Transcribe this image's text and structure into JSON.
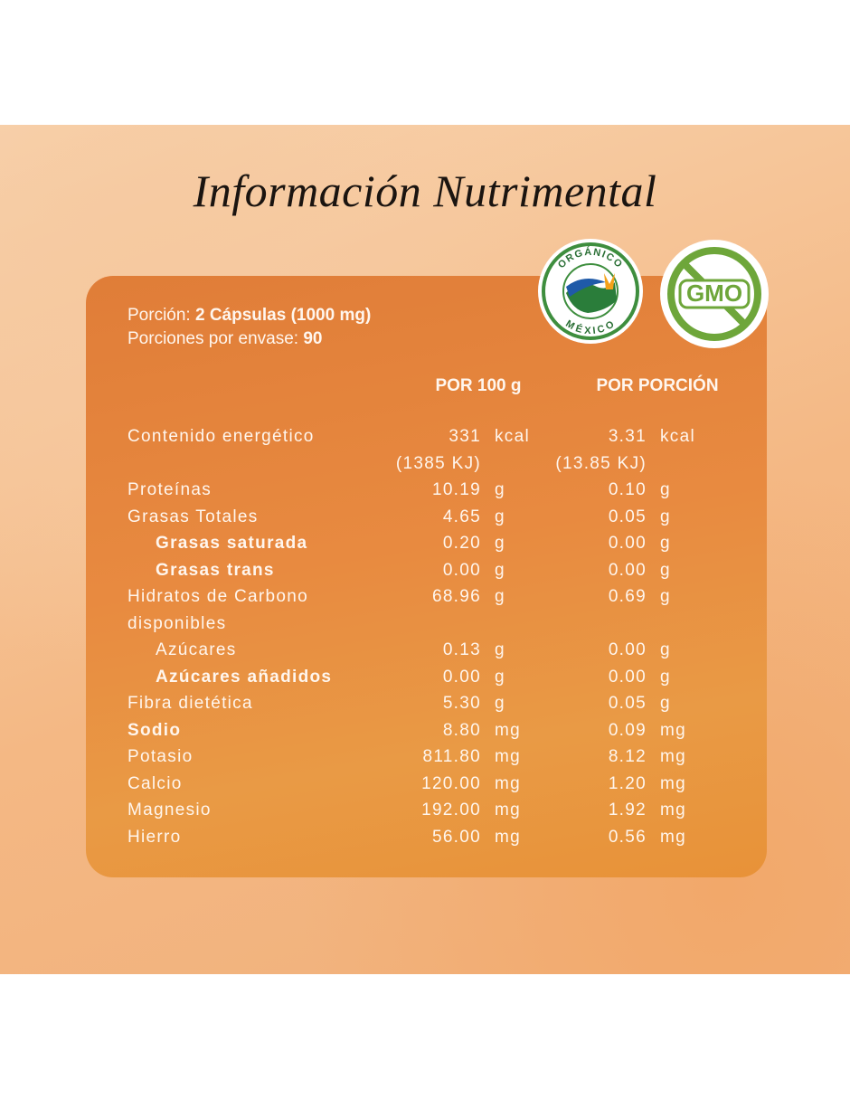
{
  "header": {
    "title": "Información Nutrimental"
  },
  "serving": {
    "label": "Porción:",
    "value": "2 Cápsulas (1000 mg)"
  },
  "servings_per_container": {
    "label": "Porciones por envase:",
    "value": "90"
  },
  "badges": {
    "organic": {
      "top": "ORGÁNICO",
      "bottom": "MÉXICO"
    },
    "gmo": "GMO"
  },
  "table": {
    "columns": [
      "POR 100 g",
      "POR PORCIÓN"
    ],
    "rows": [
      {
        "name": "Contenido energético",
        "per_100": "331",
        "unit_100": "kcal",
        "per_serving": "3.31",
        "unit_serving": "kcal",
        "kj_100": "(1385 KJ)",
        "kj_serving": "(13.85 KJ)"
      },
      {
        "name": "Proteínas",
        "per_100": "10.19",
        "unit_100": "g",
        "per_serving": "0.10",
        "unit_serving": "g"
      },
      {
        "name": "Grasas Totales",
        "per_100": "4.65",
        "unit_100": "g",
        "per_serving": "0.05",
        "unit_serving": "g"
      },
      {
        "name": "Grasas saturada",
        "per_100": "0.20",
        "unit_100": "g",
        "per_serving": "0.00",
        "unit_serving": "g",
        "bold": true,
        "indent": true
      },
      {
        "name": "Grasas trans",
        "per_100": "0.00",
        "unit_100": "g",
        "per_serving": "0.00",
        "unit_serving": "g",
        "bold": true,
        "indent": true
      },
      {
        "name": "Hidratos de Carbono disponibles",
        "per_100": "68.96",
        "unit_100": "g",
        "per_serving": "0.69",
        "unit_serving": "g"
      },
      {
        "name": "Azúcares",
        "per_100": "0.13",
        "unit_100": "g",
        "per_serving": "0.00",
        "unit_serving": "g",
        "indent": true
      },
      {
        "name": "Azúcares añadidos",
        "per_100": "0.00",
        "unit_100": "g",
        "per_serving": "0.00",
        "unit_serving": "g",
        "bold": true,
        "indent": true
      },
      {
        "name": "Fibra dietética",
        "per_100": "5.30",
        "unit_100": "g",
        "per_serving": "0.05",
        "unit_serving": "g"
      },
      {
        "name": "Sodio",
        "per_100": "8.80",
        "unit_100": "mg",
        "per_serving": "0.09",
        "unit_serving": "mg",
        "bold": true
      },
      {
        "name": "Potasio",
        "per_100": "811.80",
        "unit_100": "mg",
        "per_serving": "8.12",
        "unit_serving": "mg"
      },
      {
        "name": "Calcio",
        "per_100": "120.00",
        "unit_100": "mg",
        "per_serving": "1.20",
        "unit_serving": "mg"
      },
      {
        "name": "Magnesio",
        "per_100": "192.00",
        "unit_100": "mg",
        "per_serving": "1.92",
        "unit_serving": "mg"
      },
      {
        "name": "Hierro",
        "per_100": "56.00",
        "unit_100": "mg",
        "per_serving": "0.56",
        "unit_serving": "mg"
      }
    ]
  }
}
